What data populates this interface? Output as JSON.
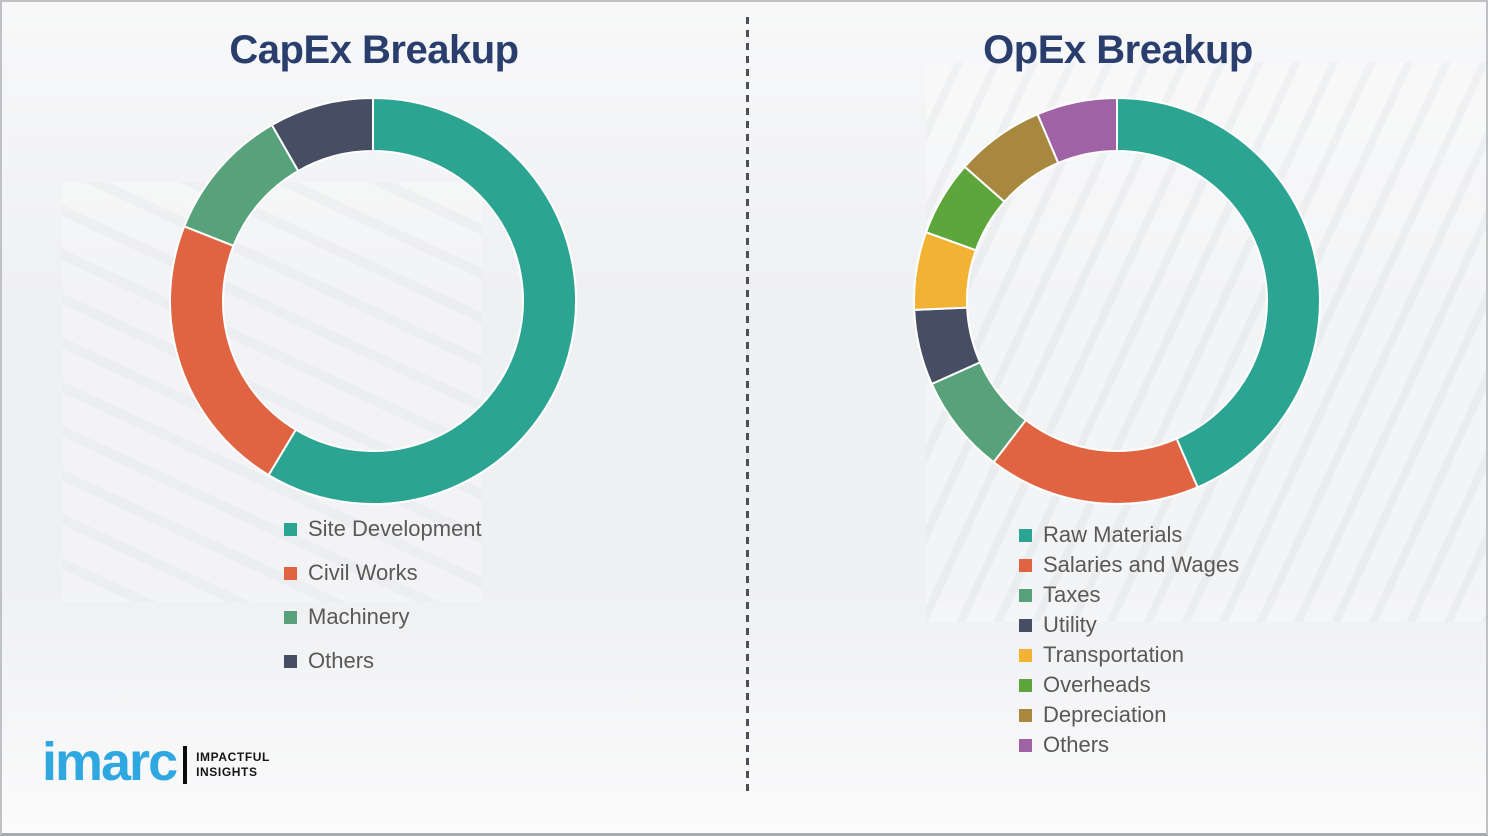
{
  "theme": {
    "title_color": "#2a3e6e",
    "legend_text_color": "#595959",
    "background_color": "#eff0f2",
    "divider_color": "#4d4f52"
  },
  "chart_data": [
    {
      "type": "pie",
      "subtype": "donut",
      "title": "CapEx Breakup",
      "labels": [
        "Site Development",
        "Civil Works",
        "Machinery",
        "Others"
      ],
      "values": [
        58.6,
        22.4,
        10.7,
        8.3
      ],
      "unit": "percent_estimated_no_data_labels_shown",
      "colors": [
        "#2ca492",
        "#e06442",
        "#57a27a",
        "#474d63"
      ],
      "start_angle_deg": 0,
      "direction": "clockwise",
      "donut_hole_ratio": 0.74,
      "legend_position": "below",
      "segment_gap_color": "#ffffff"
    },
    {
      "type": "pie",
      "subtype": "donut",
      "title": "OpEx Breakup",
      "labels": [
        "Raw Materials",
        "Salaries and Wages",
        "Taxes",
        "Utility",
        "Transportation",
        "Overheads",
        "Depreciation",
        "Others"
      ],
      "values": [
        43.5,
        16.9,
        7.9,
        6.0,
        6.2,
        6.0,
        7.1,
        6.4
      ],
      "unit": "percent_estimated_no_data_labels_shown",
      "colors": [
        "#2ca492",
        "#e06442",
        "#57a27a",
        "#474d63",
        "#f2b234",
        "#5ca63c",
        "#a8883f",
        "#9f62a4"
      ],
      "start_angle_deg": 0,
      "direction": "clockwise",
      "donut_hole_ratio": 0.74,
      "legend_position": "below",
      "segment_gap_color": "#ffffff"
    }
  ],
  "logo": {
    "brand": "imarc",
    "tagline_line1": "IMPACTFUL",
    "tagline_line2": "INSIGHTS",
    "brand_color": "#2fa8e1"
  }
}
